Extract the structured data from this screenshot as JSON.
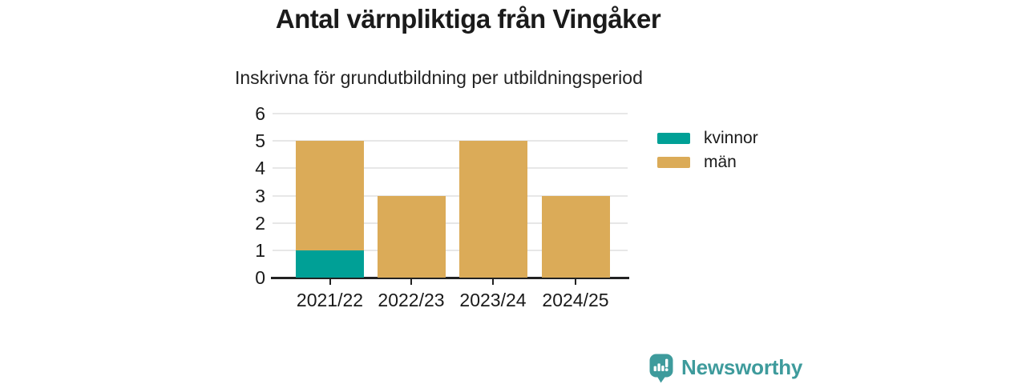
{
  "header": {
    "title": "Antal värnpliktiga från Vingåker",
    "subtitle": "Inskrivna för grundutbildning per utbildningsperiod"
  },
  "chart_data": {
    "type": "bar",
    "stacked": true,
    "categories": [
      "2021/22",
      "2022/23",
      "2023/24",
      "2024/25"
    ],
    "series": [
      {
        "name": "kvinnor",
        "color": "#00A096",
        "values": [
          1,
          0,
          0,
          0
        ]
      },
      {
        "name": "män",
        "color": "#DBAB58",
        "values": [
          4,
          3,
          5,
          3
        ]
      }
    ],
    "totals": [
      5,
      3,
      5,
      3
    ],
    "title": "Antal värnpliktiga från Vingåker",
    "subtitle": "Inskrivna för grundutbildning per utbildningsperiod",
    "xlabel": "",
    "ylabel": "",
    "ylim": [
      0,
      6
    ],
    "yticks": [
      0,
      1,
      2,
      3,
      4,
      5,
      6
    ],
    "grid": true,
    "legend_position": "right",
    "legend": [
      "kvinnor",
      "män"
    ]
  },
  "colors": {
    "kvinnor": "#00A096",
    "man": "#DBAB58",
    "brand_teal": "#3E9B9C",
    "axis": "#222222",
    "grid": "#e7e7e7",
    "text": "#1a1a1a"
  },
  "footer": {
    "brand": "Newsworthy",
    "logo_icon": "bar-chart-speech-bubble"
  }
}
